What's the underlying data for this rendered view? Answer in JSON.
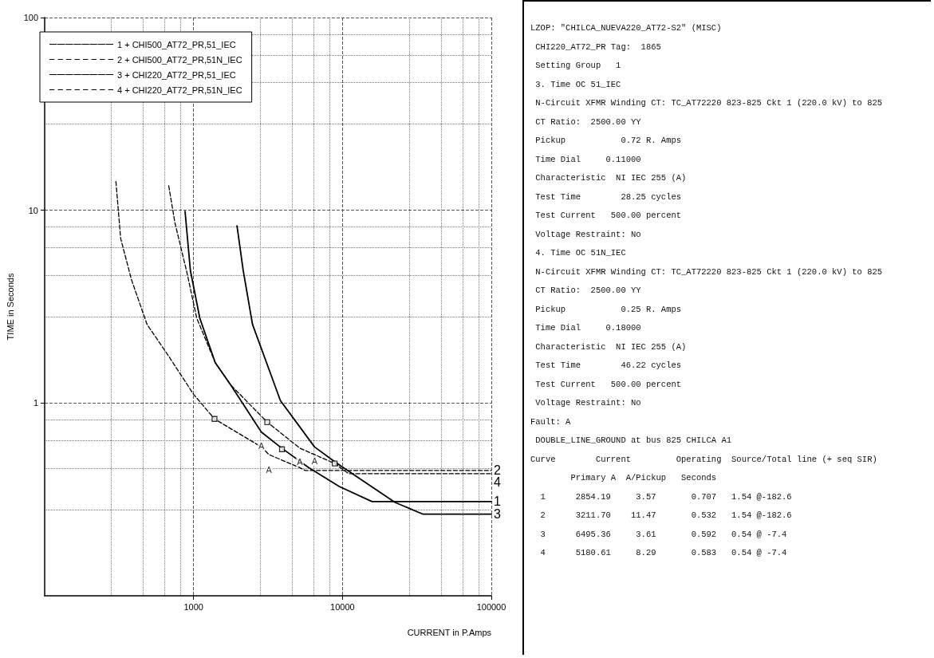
{
  "chart_data": {
    "type": "line",
    "xlabel": "CURRENT in P.Amps",
    "ylabel": "TIME in Seconds",
    "log": "xy",
    "grid": true,
    "legend": "top left",
    "marker": "none",
    "xlim": [
      100,
      100000
    ],
    "xticks": [
      1000,
      10000,
      100000
    ],
    "ylim": [
      0.1,
      100
    ],
    "yticks": [
      1,
      10,
      100
    ],
    "series": [
      {
        "name": "1 + CHI500_AT72_PR,51_IEC",
        "color": "#000000",
        "line_style": "solid",
        "x": [
          877,
          952,
          1101,
          1399,
          1778,
          2854,
          3926,
          5902,
          9530,
          15800,
          100000
        ],
        "values": [
          9.86,
          4.88,
          2.76,
          1.62,
          1.24,
          0.707,
          0.582,
          0.464,
          0.369,
          0.308,
          0.308
        ]
      },
      {
        "name": "2 + CHI500_AT72_PR,51N_IEC",
        "color": "#000000",
        "line_style": "dashed",
        "x": [
          301,
          324,
          383,
          487,
          681,
          1000,
          1383,
          2873,
          3211,
          5105,
          5620,
          100000
        ],
        "values": [
          14.1,
          7.14,
          4.36,
          2.56,
          1.75,
          1.11,
          0.827,
          0.59,
          0.54,
          0.464,
          0.447,
          0.447
        ]
      },
      {
        "name": "3 + CHI220_AT72_PR,51_IEC",
        "color": "#000000",
        "line_style": "solid",
        "x": [
          1958,
          2154,
          2488,
          3831,
          6495,
          9080,
          22600,
          34800,
          100000
        ],
        "values": [
          8.3,
          4.88,
          2.56,
          1.03,
          0.592,
          0.49,
          0.305,
          0.265,
          0.265
        ]
      },
      {
        "name": "4 + CHI220_AT72_PR,51N_IEC",
        "color": "#000000",
        "line_style": "dashed",
        "x": [
          681,
          750,
          908,
          1050,
          1399,
          1778,
          3126,
          5180,
          8870,
          11000,
          100000
        ],
        "values": [
          13.4,
          8.6,
          4.66,
          2.76,
          1.62,
          1.24,
          0.796,
          0.583,
          0.486,
          0.43,
          0.43
        ]
      },
      {
        "type": "scatter",
        "marker": "square",
        "color": "#000000",
        "x": [
          1383,
          3126,
          3926,
          8870
        ],
        "values": [
          0.827,
          0.796,
          0.576,
          0.486
        ]
      }
    ],
    "annotations": [
      {
        "text": "A",
        "x": 2854,
        "y": 0.707
      },
      {
        "text": "A",
        "x": 3211,
        "y": 0.532
      },
      {
        "text": "A",
        "x": 6495,
        "y": 0.592
      },
      {
        "text": "A",
        "x": 5180,
        "y": 0.583
      },
      {
        "text": "1",
        "x": 100000,
        "y": 0.308
      },
      {
        "text": "2",
        "x": 100000,
        "y": 0.447
      },
      {
        "text": "3",
        "x": 100000,
        "y": 0.265
      },
      {
        "text": "4",
        "x": 100000,
        "y": 0.43
      },
      "LZOP: \"CHILCA_NUEVA220_AT72-S2\" (MISC)",
      " CHI220_AT72_PR Tag:  1865",
      " Setting Group   1",
      " 3. Time OC 51_IEC",
      " N-Circuit XFMR Winding CT: TC_AT72220 823-825 Ckt 1 (220.0 kV) to 825",
      " CT Ratio:  2500.00 YY",
      " Pickup           0.72 R. Amps",
      " Time Dial     0.11000",
      " Characteristic  NI IEC 255 (A)",
      " Test Time        28.25 cycles",
      " Test Current   500.00 percent",
      " Voltage Restraint: No",
      " 4. Time OC 51N_IEC",
      " N-Circuit XFMR Winding CT: TC_AT72220 823-825 Ckt 1 (220.0 kV) to 825",
      " CT Ratio:  2500.00 YY",
      " Pickup           0.25 R. Amps",
      " Time Dial     0.18000",
      " Characteristic  NI IEC 255 (A)",
      " Test Time        46.22 cycles",
      " Test Current   500.00 percent",
      " Voltage Restraint: No",
      "Fault: A",
      " DOUBLE_LINE_GROUND at bus 825 CHILCA A1",
      "Curve        Current         Operating  Source/Total line (+ seq SIR)",
      "        Primary A  A/Pickup   Seconds",
      "  1      2854.19     3.57       0.707   1.54 @-182.6",
      "  2      3211.70    11.47       0.532   1.54 @-182.6",
      "  3      6495.36     3.61       0.592   0.54 @ -7.4",
      "  4      5180.61     8.29       0.583   0.54 @ -7.4"
    ]
  }
}
